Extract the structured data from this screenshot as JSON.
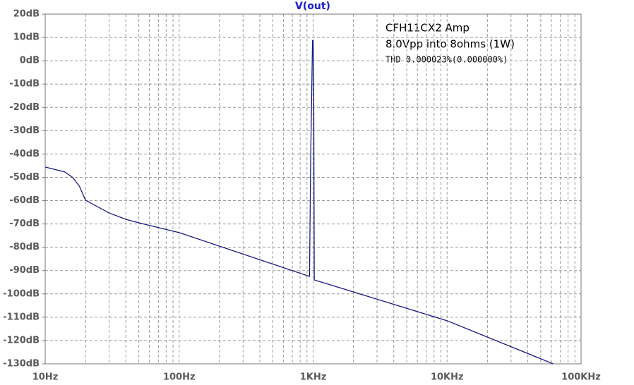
{
  "chart_data": {
    "type": "line",
    "title": "V(out)",
    "annotations": [
      "CFH11CX2 Amp",
      "8.0Vpp into 8ohms (1W)",
      "THD 0.000023%(0.000000%)"
    ],
    "xscale": "log",
    "grid": true,
    "xlim": [
      10,
      100000
    ],
    "ylim": [
      -130,
      20
    ],
    "xticks": [
      {
        "value": 10,
        "label": "10Hz"
      },
      {
        "value": 100,
        "label": "100Hz"
      },
      {
        "value": 1000,
        "label": "1KHz"
      },
      {
        "value": 10000,
        "label": "10KHz"
      },
      {
        "value": 100000,
        "label": "100KHz"
      }
    ],
    "xminorticks": [
      20,
      30,
      40,
      50,
      60,
      70,
      80,
      90,
      200,
      300,
      400,
      500,
      600,
      700,
      800,
      900,
      2000,
      3000,
      4000,
      5000,
      6000,
      7000,
      8000,
      9000,
      20000,
      30000,
      40000,
      50000,
      60000,
      70000,
      80000,
      90000
    ],
    "yticks": [
      {
        "value": 20,
        "label": "20dB"
      },
      {
        "value": 10,
        "label": "10dB"
      },
      {
        "value": 0,
        "label": "0dB"
      },
      {
        "value": -10,
        "label": "-10dB"
      },
      {
        "value": -20,
        "label": "-20dB"
      },
      {
        "value": -30,
        "label": "-30dB"
      },
      {
        "value": -40,
        "label": "-40dB"
      },
      {
        "value": -50,
        "label": "-50dB"
      },
      {
        "value": -60,
        "label": "-60dB"
      },
      {
        "value": -70,
        "label": "-70dB"
      },
      {
        "value": -80,
        "label": "-80dB"
      },
      {
        "value": -90,
        "label": "-90dB"
      },
      {
        "value": -100,
        "label": "-100dB"
      },
      {
        "value": -110,
        "label": "-110dB"
      },
      {
        "value": -120,
        "label": "-120dB"
      },
      {
        "value": -130,
        "label": "-130dB"
      }
    ],
    "x": [
      10,
      14,
      16,
      18,
      20,
      30,
      40,
      50,
      100,
      940,
      960,
      990,
      1000,
      1010,
      1020,
      10000,
      62000
    ],
    "series": [
      {
        "name": "V(out)",
        "color": "#1a1a80",
        "values": [
          -45.6,
          -47.7,
          -50,
          -53.8,
          -59.8,
          -65.3,
          -68,
          -69.5,
          -73.7,
          -92.5,
          -40,
          8.6,
          8.6,
          -10,
          -94,
          -111.5,
          -130
        ]
      }
    ]
  }
}
